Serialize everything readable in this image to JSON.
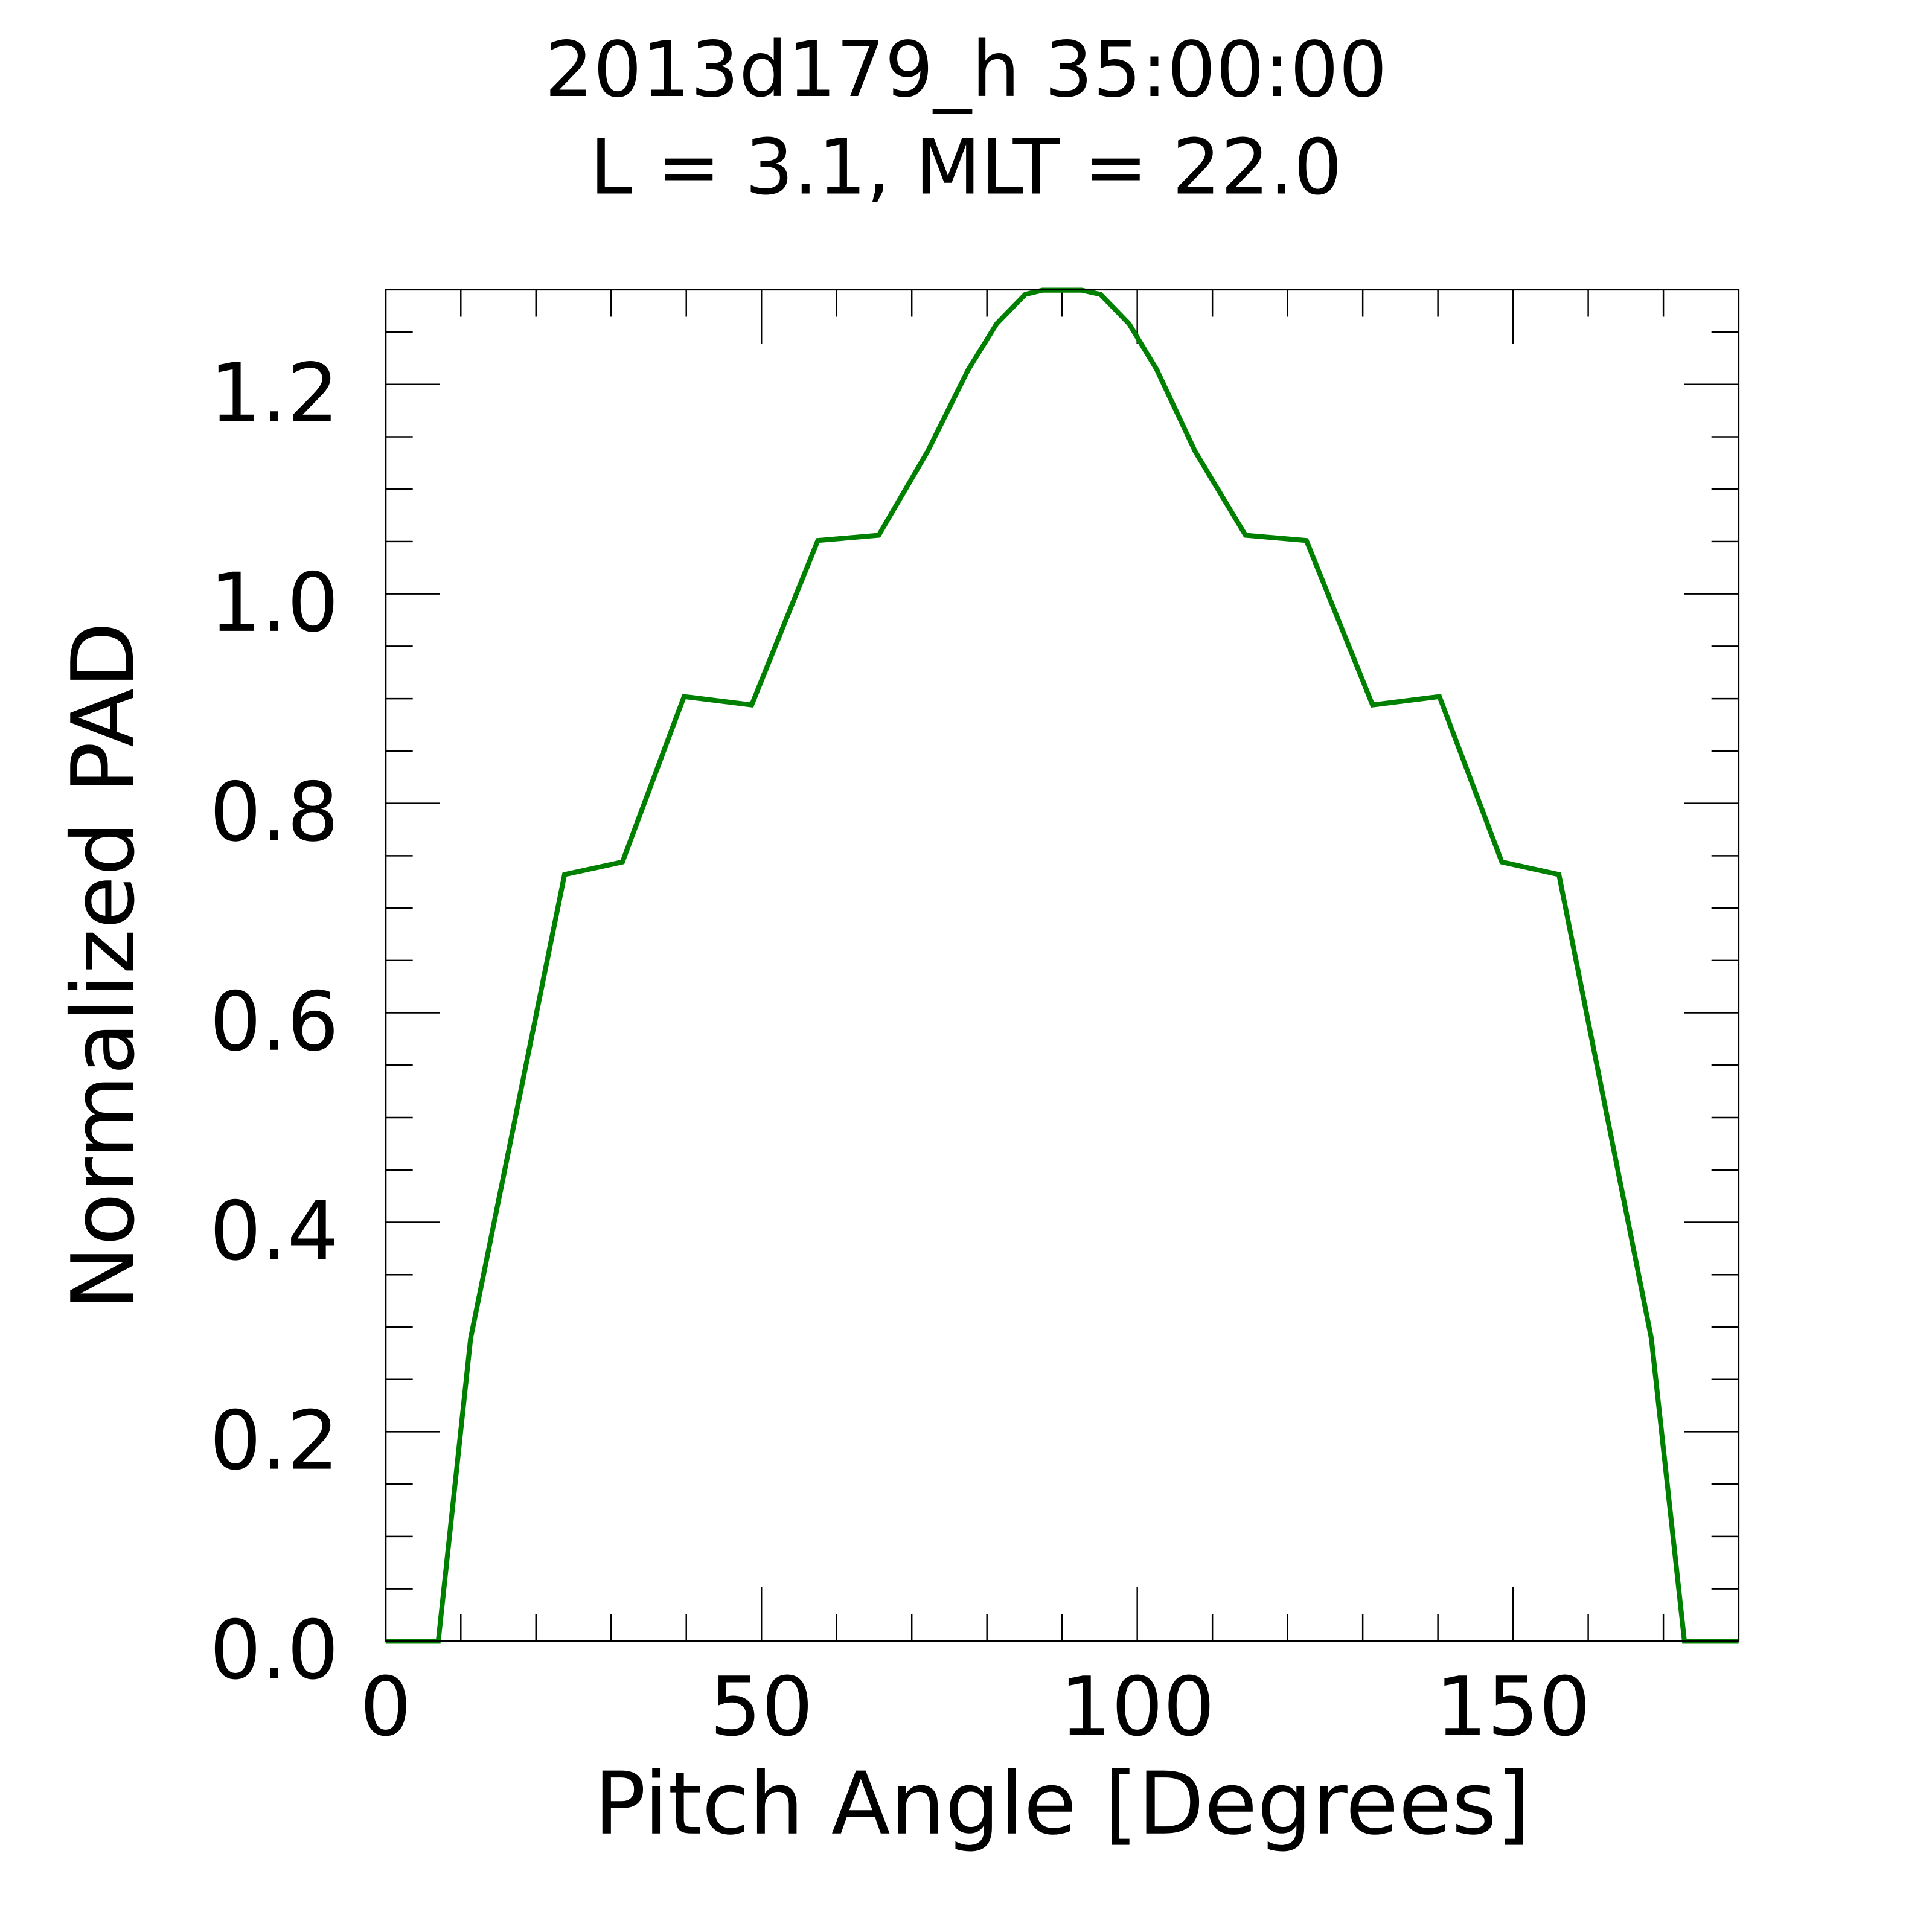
{
  "chart_data": {
    "type": "line",
    "title": "2013d179_h  35:00:00",
    "subtitle": "L = 3.1, MLT = 22.0",
    "xlabel": "Pitch Angle [Degrees]",
    "ylabel": "Normalized PAD",
    "xlim": [
      0,
      180
    ],
    "ylim": [
      0,
      1.29
    ],
    "x_ticks": [
      0,
      50,
      100,
      150
    ],
    "x_tick_labels": [
      "0",
      "50",
      "100",
      "150"
    ],
    "x_minor_step": 10,
    "y_ticks": [
      0,
      0.2,
      0.4,
      0.6,
      0.8,
      1.0,
      1.2
    ],
    "y_tick_labels": [
      "0.0",
      "0.2",
      "0.4",
      "0.6",
      "0.8",
      "1.0",
      "1.2"
    ],
    "y_minor_step": 0.05,
    "grid": false,
    "colors": {
      "line": "#008000",
      "axes": "#000000"
    },
    "series": [
      {
        "x": [
          0,
          7,
          11.3,
          23.8,
          31.5,
          39.7,
          48.7,
          57.5,
          65.6,
          72.1,
          77.5,
          81.3,
          85.1,
          87.4,
          92.6,
          95.1,
          98.9,
          102.6,
          107.7,
          114.4,
          122.5,
          131.3,
          140.2,
          148.5,
          156.1,
          168.4,
          172.8,
          180
        ],
        "y": [
          0,
          0,
          0.289,
          0.732,
          0.744,
          0.902,
          0.894,
          1.051,
          1.056,
          1.136,
          1.214,
          1.258,
          1.286,
          1.29,
          1.29,
          1.286,
          1.258,
          1.214,
          1.136,
          1.056,
          1.051,
          0.894,
          0.902,
          0.744,
          0.732,
          0.289,
          0,
          0
        ]
      }
    ]
  }
}
